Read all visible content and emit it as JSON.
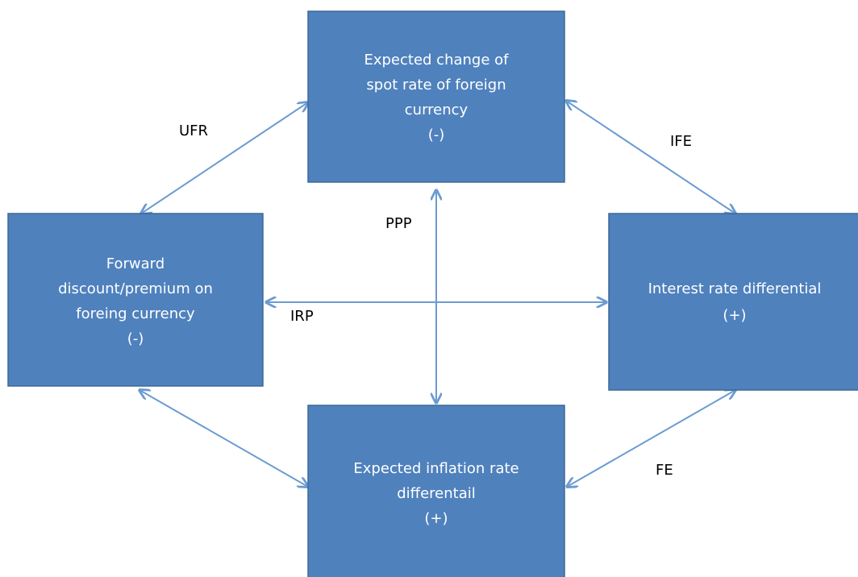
{
  "nodes": [
    {
      "lines": [
        "Expected change of",
        "spot rate of foreign",
        "currency",
        "(-)"
      ]
    },
    {
      "lines": [
        "Forward",
        "discount/premium on",
        "foreing currency",
        "(-)"
      ]
    },
    {
      "lines": [
        "Interest rate differential",
        "(+)"
      ]
    },
    {
      "lines": [
        "Expected inflation rate",
        "differentail",
        "(+)"
      ]
    }
  ],
  "edges": [
    {
      "label": "UFR"
    },
    {
      "label": "IFE"
    },
    {
      "label": "PPP"
    },
    {
      "label": "IRP"
    },
    {
      "label": "FE"
    }
  ]
}
